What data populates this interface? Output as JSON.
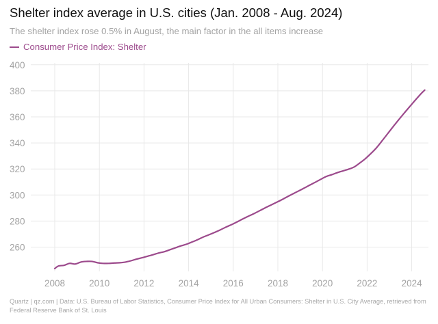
{
  "header": {
    "title": "Shelter index average in U.S. cities (Jan. 2008 - Aug. 2024)",
    "subtitle": "The shelter index rose 0.5% in August, the main factor in the all items increase"
  },
  "footer": {
    "source": "Quartz | qz.com | Data: U.S. Bureau of Labor Statistics, Consumer Price Index for All Urban Consumers: Shelter in U.S. City Average, retrieved from Federal Reserve Bank of St. Louis"
  },
  "colors": {
    "series": "#9c4a8c",
    "gridline": "#e8e8e8",
    "tick_text": "#a3a3a3"
  },
  "chart_data": {
    "type": "line",
    "title": "Shelter index average in U.S. cities (Jan. 2008 - Aug. 2024)",
    "subtitle": "The shelter index rose 0.5% in August, the main factor in the all items increase",
    "xlabel": "",
    "ylabel": "",
    "x_ticks": [
      "2008",
      "2010",
      "2012",
      "2014",
      "2016",
      "2018",
      "2020",
      "2022",
      "2024"
    ],
    "y_ticks": [
      "260",
      "280",
      "300",
      "320",
      "340",
      "360",
      "380",
      "400"
    ],
    "xlim": [
      "2008-01",
      "2024-08"
    ],
    "ylim": [
      242,
      404
    ],
    "grid": true,
    "legend_position": "top-left",
    "series": [
      {
        "name": "Consumer Price Index: Shelter",
        "points": [
          [
            "2008-01",
            243.5
          ],
          [
            "2008-03",
            245.5
          ],
          [
            "2008-06",
            246.0
          ],
          [
            "2008-09",
            247.5
          ],
          [
            "2008-12",
            247.0
          ],
          [
            "2009-03",
            248.5
          ],
          [
            "2009-06",
            249.0
          ],
          [
            "2009-09",
            249.0
          ],
          [
            "2009-12",
            248.0
          ],
          [
            "2010-03",
            247.5
          ],
          [
            "2010-06",
            247.5
          ],
          [
            "2010-09",
            247.8
          ],
          [
            "2010-12",
            248.0
          ],
          [
            "2011-03",
            248.5
          ],
          [
            "2011-06",
            249.5
          ],
          [
            "2011-09",
            250.8
          ],
          [
            "2011-12",
            251.8
          ],
          [
            "2012-03",
            253.0
          ],
          [
            "2012-06",
            254.2
          ],
          [
            "2012-09",
            255.5
          ],
          [
            "2012-12",
            256.5
          ],
          [
            "2013-03",
            258.0
          ],
          [
            "2013-06",
            259.5
          ],
          [
            "2013-09",
            261.0
          ],
          [
            "2013-12",
            262.3
          ],
          [
            "2014-03",
            264.0
          ],
          [
            "2014-06",
            265.8
          ],
          [
            "2014-09",
            267.8
          ],
          [
            "2014-12",
            269.5
          ],
          [
            "2015-03",
            271.3
          ],
          [
            "2015-06",
            273.2
          ],
          [
            "2015-09",
            275.3
          ],
          [
            "2015-12",
            277.2
          ],
          [
            "2016-03",
            279.3
          ],
          [
            "2016-06",
            281.5
          ],
          [
            "2016-09",
            283.6
          ],
          [
            "2016-12",
            285.6
          ],
          [
            "2017-03",
            287.8
          ],
          [
            "2017-06",
            290.0
          ],
          [
            "2017-09",
            292.1
          ],
          [
            "2017-12",
            294.2
          ],
          [
            "2018-03",
            296.3
          ],
          [
            "2018-06",
            298.6
          ],
          [
            "2018-09",
            300.8
          ],
          [
            "2018-12",
            303.0
          ],
          [
            "2019-03",
            305.2
          ],
          [
            "2019-06",
            307.5
          ],
          [
            "2019-09",
            309.7
          ],
          [
            "2019-12",
            312.0
          ],
          [
            "2020-03",
            314.2
          ],
          [
            "2020-06",
            315.6
          ],
          [
            "2020-09",
            317.2
          ],
          [
            "2020-12",
            318.5
          ],
          [
            "2021-03",
            319.8
          ],
          [
            "2021-06",
            321.5
          ],
          [
            "2021-09",
            324.5
          ],
          [
            "2021-12",
            327.8
          ],
          [
            "2022-03",
            331.8
          ],
          [
            "2022-06",
            336.2
          ],
          [
            "2022-09",
            341.5
          ],
          [
            "2022-12",
            347.0
          ],
          [
            "2023-03",
            352.5
          ],
          [
            "2023-06",
            357.8
          ],
          [
            "2023-09",
            363.0
          ],
          [
            "2023-12",
            368.0
          ],
          [
            "2024-03",
            373.0
          ],
          [
            "2024-06",
            377.8
          ],
          [
            "2024-08",
            380.6
          ]
        ]
      }
    ]
  }
}
